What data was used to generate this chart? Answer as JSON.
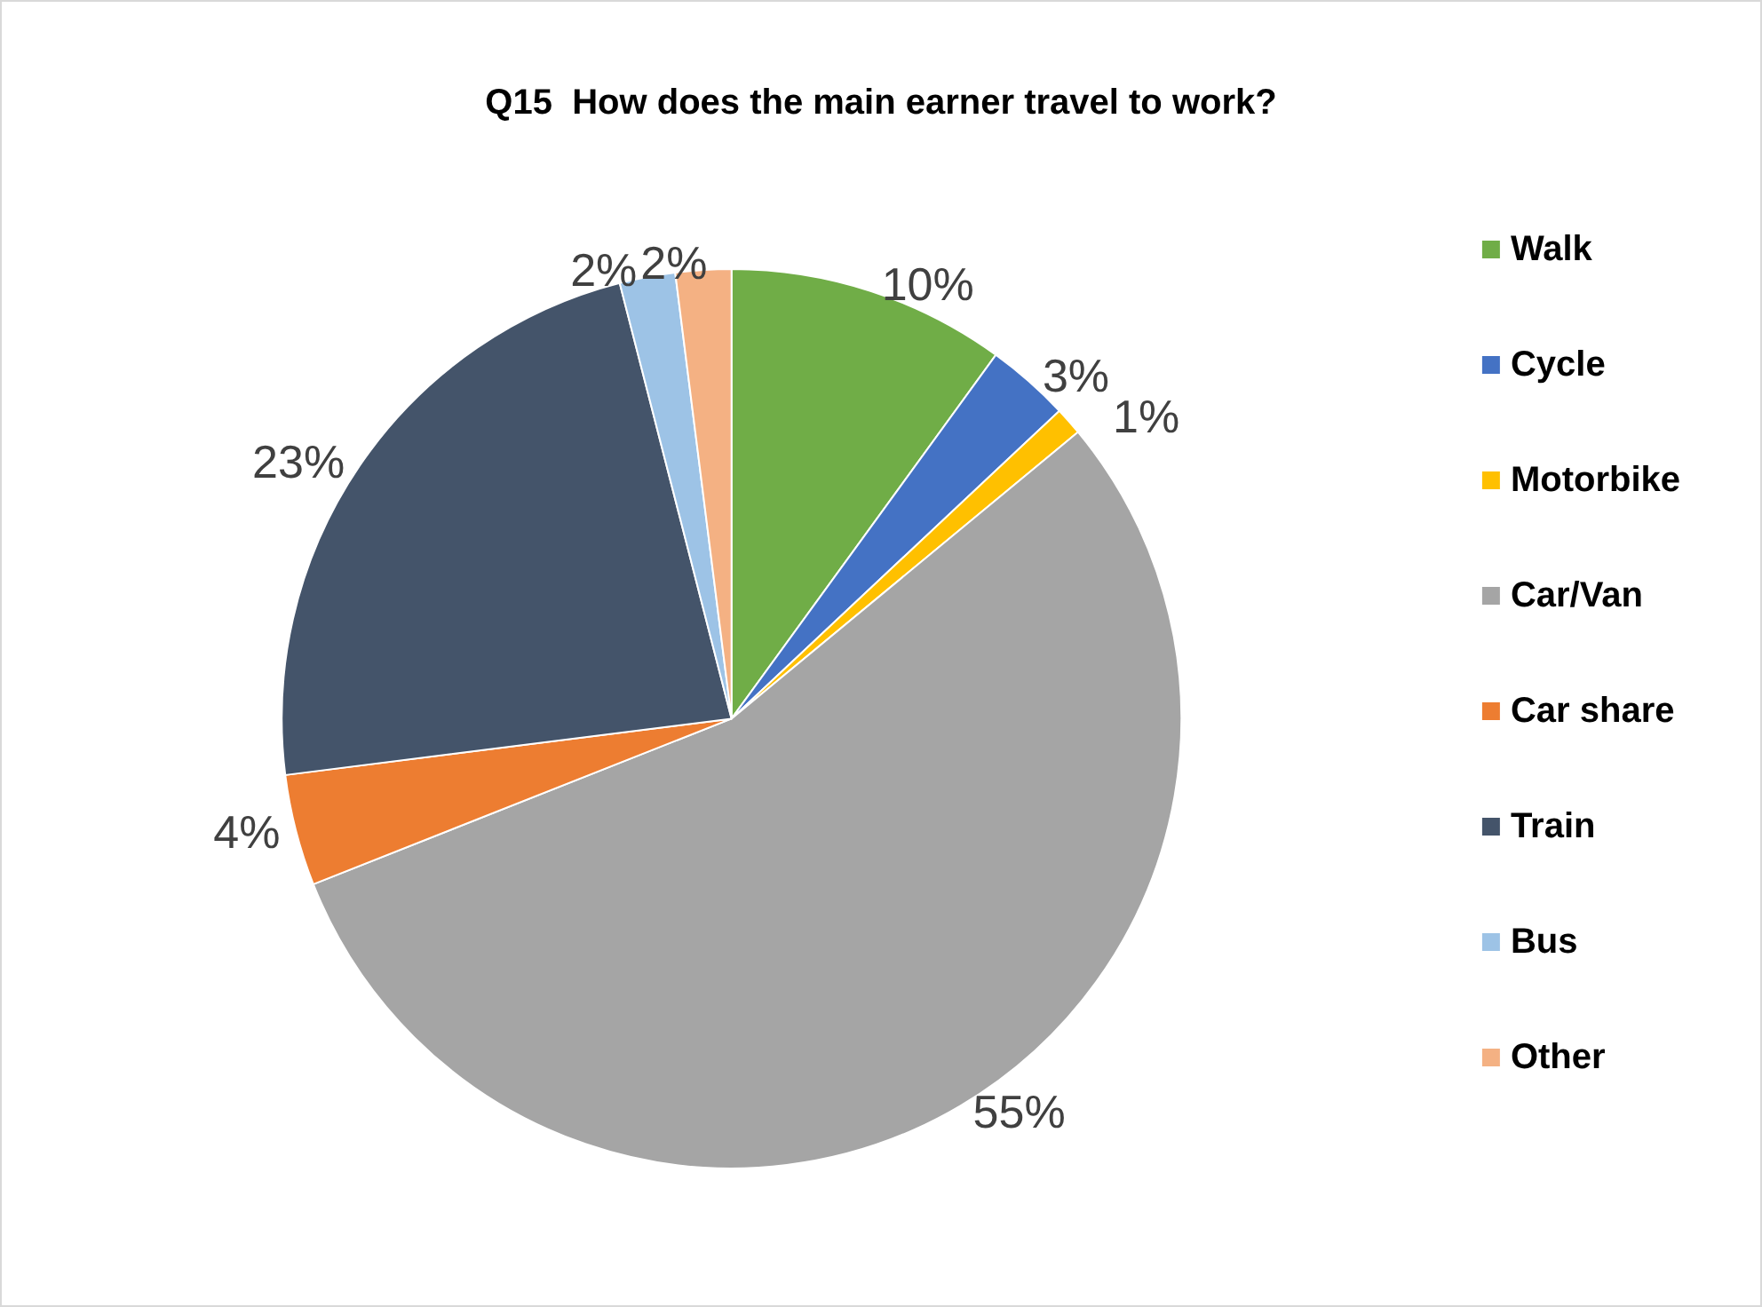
{
  "chart_data": {
    "type": "pie",
    "title": "Q15  How does the main earner travel to work?",
    "categories": [
      "Walk",
      "Cycle",
      "Motorbike",
      "Car/Van",
      "Car share",
      "Train",
      "Bus",
      "Other"
    ],
    "values": [
      10,
      3,
      1,
      55,
      4,
      23,
      2,
      2
    ],
    "value_labels": [
      "10%",
      "3%",
      "1%",
      "55%",
      "4%",
      "23%",
      "2%",
      "2%"
    ],
    "colors": [
      "#70ad47",
      "#4472c4",
      "#ffc000",
      "#a5a5a5",
      "#ed7d31",
      "#44546a",
      "#9dc3e6",
      "#f4b183"
    ],
    "legend": "right"
  }
}
